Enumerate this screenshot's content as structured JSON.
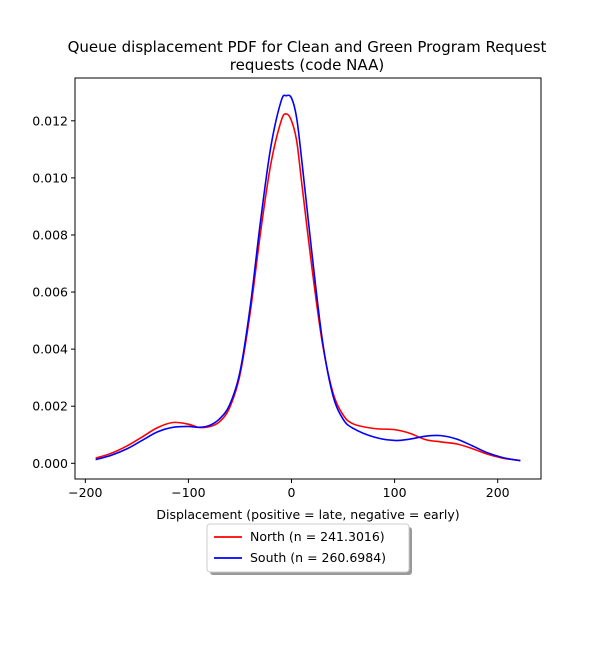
{
  "chart_data": {
    "type": "line",
    "title_line1": "Queue displacement PDF for Clean and Green Program Request",
    "title_line2": "requests (code NAA)",
    "xlabel": "Displacement (positive = late, negative = early)",
    "ylabel": "",
    "xlim": [
      -210,
      242
    ],
    "ylim": [
      -0.00055,
      0.0135
    ],
    "xticks": [
      -200,
      -100,
      0,
      100,
      200
    ],
    "xtick_labels": [
      "−200",
      "−100",
      "0",
      "100",
      "200"
    ],
    "yticks": [
      0.0,
      0.002,
      0.004,
      0.006,
      0.008,
      0.01,
      0.012
    ],
    "ytick_labels": [
      "0.000",
      "0.002",
      "0.004",
      "0.006",
      "0.008",
      "0.010",
      "0.012"
    ],
    "grid": false,
    "legend_position": "below plot, centered",
    "series": [
      {
        "name": "North (n = 241.3016)",
        "color": "#ff0000",
        "x": [
          -190,
          -175,
          -160,
          -145,
          -130,
          -115,
          -100,
          -90,
          -80,
          -70,
          -60,
          -50,
          -40,
          -30,
          -20,
          -10,
          -5,
          0,
          5,
          10,
          20,
          30,
          40,
          50,
          60,
          80,
          100,
          115,
          130,
          145,
          160,
          175,
          190,
          205,
          222
        ],
        "y": [
          0.00018,
          0.00035,
          0.0006,
          0.00092,
          0.00125,
          0.00143,
          0.00137,
          0.00126,
          0.00128,
          0.00145,
          0.00195,
          0.0031,
          0.0053,
          0.0081,
          0.0105,
          0.012,
          0.01224,
          0.012,
          0.0113,
          0.0098,
          0.0068,
          0.0042,
          0.0025,
          0.0017,
          0.00138,
          0.00122,
          0.00118,
          0.00105,
          0.00083,
          0.00075,
          0.00068,
          0.00052,
          0.00032,
          0.00018,
          0.0001
        ]
      },
      {
        "name": "South (n = 260.6984)",
        "color": "#0000ff",
        "x": [
          -190,
          -175,
          -160,
          -145,
          -130,
          -115,
          -100,
          -90,
          -80,
          -70,
          -60,
          -50,
          -40,
          -30,
          -20,
          -10,
          -5,
          0,
          5,
          10,
          20,
          30,
          40,
          50,
          60,
          80,
          100,
          115,
          130,
          145,
          160,
          175,
          190,
          205,
          222
        ],
        "y": [
          0.00013,
          0.00028,
          0.0005,
          0.0008,
          0.0011,
          0.00126,
          0.00129,
          0.00126,
          0.00132,
          0.00155,
          0.00205,
          0.0032,
          0.0055,
          0.0085,
          0.0111,
          0.0127,
          0.01288,
          0.0128,
          0.0121,
          0.0106,
          0.0073,
          0.0043,
          0.0024,
          0.00155,
          0.00122,
          0.00092,
          0.0008,
          0.00085,
          0.00095,
          0.00097,
          0.00085,
          0.00062,
          0.00037,
          0.0002,
          9e-05
        ]
      }
    ]
  }
}
